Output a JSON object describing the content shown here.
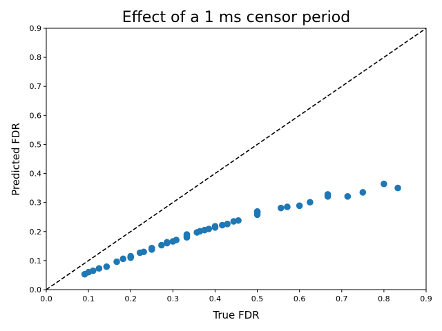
{
  "chart_data": {
    "type": "scatter",
    "title": "Effect of a 1 ms censor period",
    "xlabel": "True FDR",
    "ylabel": "Predicted FDR",
    "xlim": [
      0.0,
      0.9
    ],
    "ylim": [
      0.0,
      0.9
    ],
    "xticks": [
      "0.0",
      "0.1",
      "0.2",
      "0.3",
      "0.4",
      "0.5",
      "0.6",
      "0.7",
      "0.8",
      "0.9"
    ],
    "yticks": [
      "0.0",
      "0.1",
      "0.2",
      "0.3",
      "0.4",
      "0.5",
      "0.6",
      "0.7",
      "0.8",
      "0.9"
    ],
    "grid": false,
    "point_color": "#1f77b4",
    "reference_line": {
      "style": "dashed",
      "color": "#000000",
      "from": [
        0.0,
        0.0
      ],
      "to": [
        0.9,
        0.9
      ]
    },
    "points": [
      [
        0.091,
        0.053
      ],
      [
        0.1,
        0.06
      ],
      [
        0.111,
        0.065
      ],
      [
        0.125,
        0.073
      ],
      [
        0.143,
        0.079
      ],
      [
        0.167,
        0.096
      ],
      [
        0.182,
        0.106
      ],
      [
        0.2,
        0.11
      ],
      [
        0.2,
        0.115
      ],
      [
        0.222,
        0.127
      ],
      [
        0.231,
        0.13
      ],
      [
        0.25,
        0.138
      ],
      [
        0.25,
        0.143
      ],
      [
        0.273,
        0.153
      ],
      [
        0.286,
        0.16
      ],
      [
        0.286,
        0.163
      ],
      [
        0.3,
        0.166
      ],
      [
        0.308,
        0.171
      ],
      [
        0.333,
        0.18
      ],
      [
        0.333,
        0.185
      ],
      [
        0.333,
        0.19
      ],
      [
        0.357,
        0.197
      ],
      [
        0.364,
        0.201
      ],
      [
        0.375,
        0.205
      ],
      [
        0.385,
        0.209
      ],
      [
        0.4,
        0.214
      ],
      [
        0.4,
        0.218
      ],
      [
        0.417,
        0.222
      ],
      [
        0.429,
        0.226
      ],
      [
        0.444,
        0.235
      ],
      [
        0.455,
        0.238
      ],
      [
        0.5,
        0.258
      ],
      [
        0.5,
        0.265
      ],
      [
        0.5,
        0.269
      ],
      [
        0.556,
        0.281
      ],
      [
        0.571,
        0.285
      ],
      [
        0.6,
        0.289
      ],
      [
        0.625,
        0.301
      ],
      [
        0.667,
        0.321
      ],
      [
        0.667,
        0.328
      ],
      [
        0.714,
        0.321
      ],
      [
        0.75,
        0.335
      ],
      [
        0.8,
        0.364
      ],
      [
        0.833,
        0.35
      ]
    ]
  }
}
